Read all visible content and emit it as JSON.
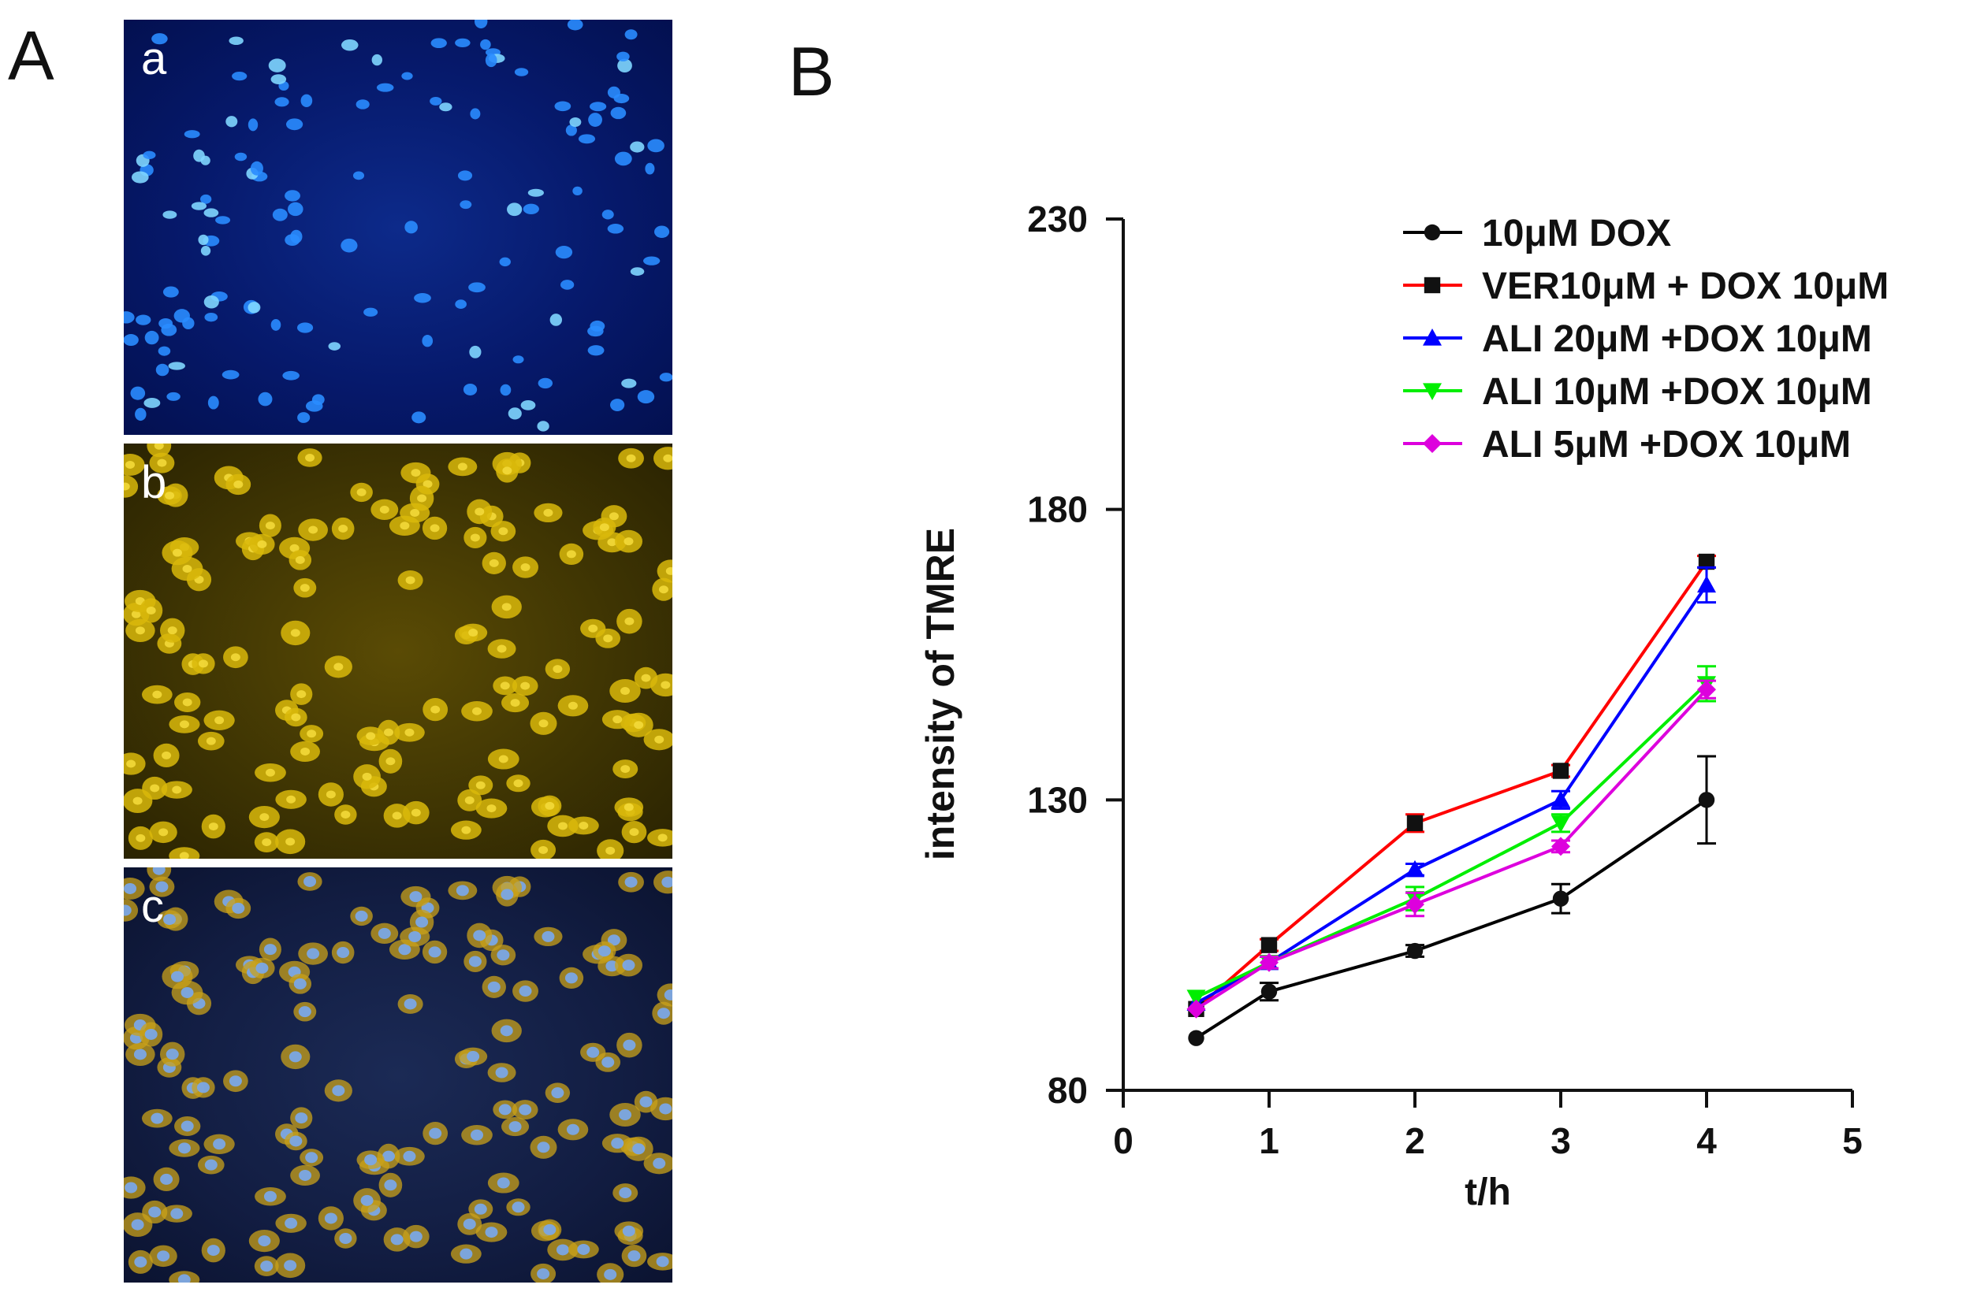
{
  "panel_a": {
    "letter": "A",
    "images": [
      {
        "label": "a",
        "stain": "blue nuclei"
      },
      {
        "label": "b",
        "stain": "yellow TMRE"
      },
      {
        "label": "c",
        "stain": "merged"
      }
    ]
  },
  "panel_b": {
    "letter": "B"
  },
  "colors": {
    "dox": "#000000",
    "ver": "#ff0000",
    "ali20": "#0000ff",
    "ali10": "#00ee00",
    "ali5": "#dd00dd"
  },
  "chart_data": {
    "type": "line",
    "title": "",
    "xlabel": "t/h",
    "ylabel": "intensity of TMRE",
    "xlim": [
      0,
      5
    ],
    "ylim": [
      80,
      230
    ],
    "xticks": [
      0,
      1,
      2,
      3,
      4,
      5
    ],
    "yticks": [
      80,
      130,
      180,
      230
    ],
    "legend_position": "top-right",
    "series": [
      {
        "name": "10μM DOX",
        "color": "#000000",
        "marker": "circle",
        "x": [
          0.5,
          1,
          2,
          3,
          4
        ],
        "y": [
          89,
          97,
          104,
          113,
          130
        ],
        "err": [
          0,
          1.5,
          1,
          2.5,
          7.5
        ]
      },
      {
        "name": "VER10μM + DOX 10μM",
        "color": "#ff0000",
        "marker": "square",
        "x": [
          0.5,
          1,
          2,
          3,
          4
        ],
        "y": [
          94,
          105,
          126,
          135,
          171
        ],
        "err": [
          0,
          1,
          1.5,
          1,
          1
        ]
      },
      {
        "name": "ALI 20μM +DOX 10μM",
        "color": "#0000ff",
        "marker": "triangle-up",
        "x": [
          0.5,
          1,
          2,
          3,
          4
        ],
        "y": [
          95,
          102,
          118,
          130,
          167
        ],
        "err": [
          0,
          1,
          1,
          1.5,
          3
        ]
      },
      {
        "name": "ALI 10μM +DOX 10μM",
        "color": "#00ee00",
        "marker": "triangle-down",
        "x": [
          0.5,
          1,
          2,
          3,
          4
        ],
        "y": [
          96,
          102,
          113,
          126,
          150
        ],
        "err": [
          0,
          1,
          2,
          1.5,
          3
        ]
      },
      {
        "name": "ALI 5μM +DOX 10μM",
        "color": "#dd00dd",
        "marker": "diamond",
        "x": [
          0.5,
          1,
          2,
          3,
          4
        ],
        "y": [
          94,
          102,
          112,
          122,
          149
        ],
        "err": [
          0,
          1,
          2,
          1,
          1.5
        ]
      }
    ]
  }
}
